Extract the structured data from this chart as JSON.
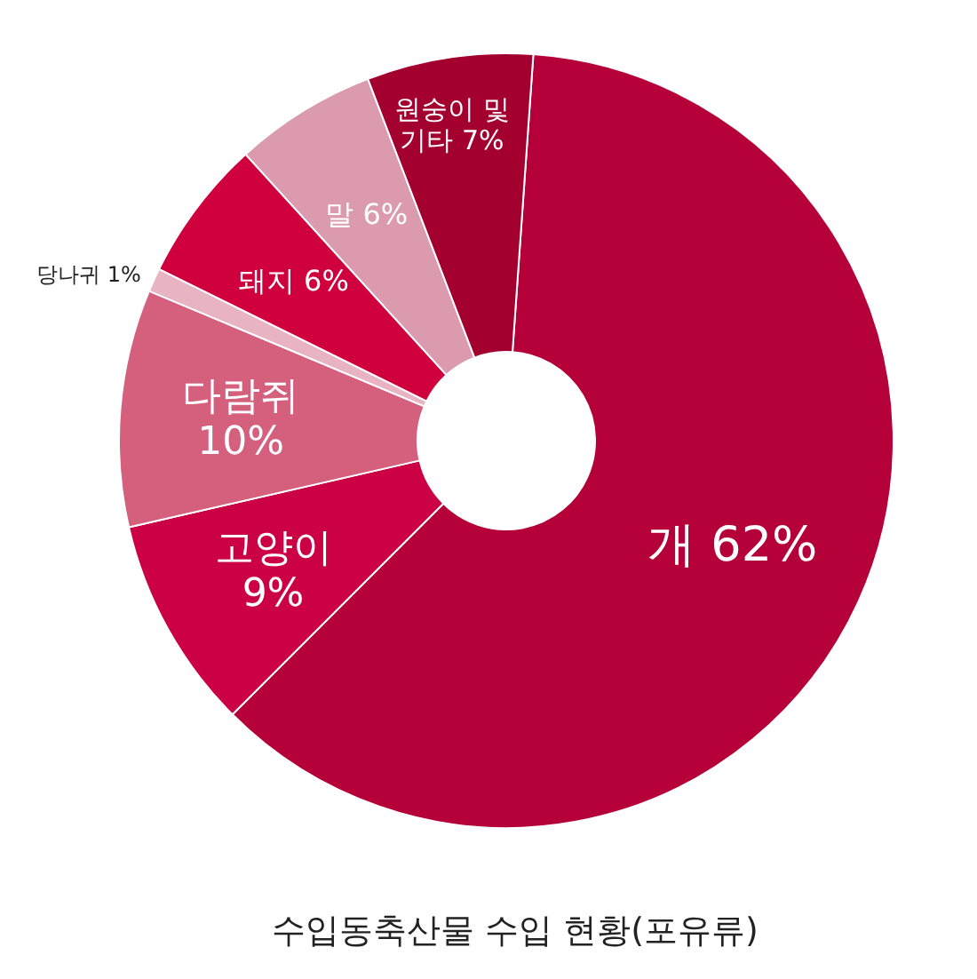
{
  "chart_data": {
    "type": "donut",
    "title": "수입동축산물 수입 현황(포유류)",
    "categories": [
      "개",
      "고양이",
      "다람쥐",
      "당나귀",
      "돼지",
      "말",
      "원숭이 및 기타"
    ],
    "values": [
      62,
      9,
      10,
      1,
      6,
      6,
      7
    ],
    "value_labels": [
      "62%",
      "9%",
      "10%",
      "1%",
      "6%",
      "6%",
      "7%"
    ],
    "colors": [
      "#b5003a",
      "#cc0044",
      "#d4607e",
      "#e8b4c4",
      "#d0003e",
      "#dc9aae",
      "#a3002f"
    ]
  }
}
